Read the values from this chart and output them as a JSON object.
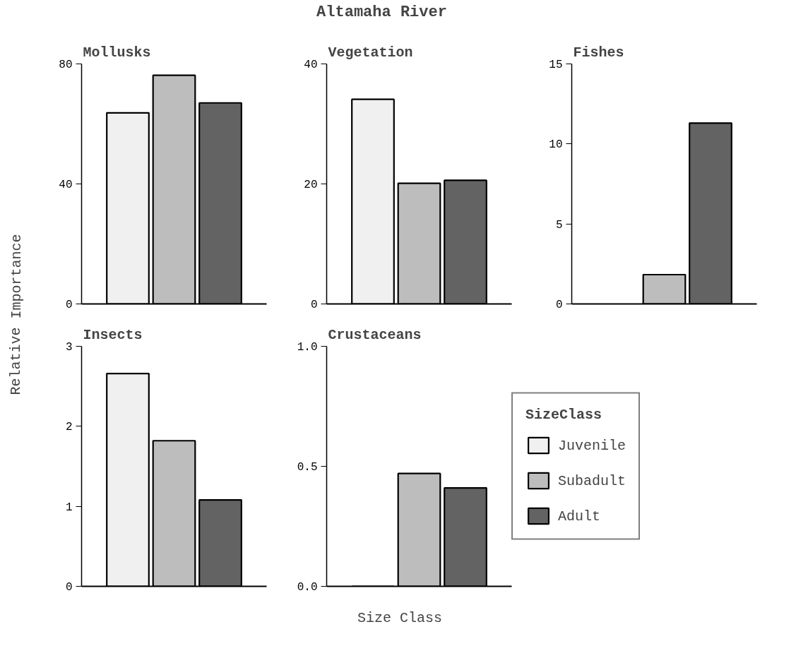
{
  "chart_data": [
    {
      "type": "bar",
      "title": "Mollusks",
      "categories": [
        null
      ],
      "ylim": [
        0,
        80
      ],
      "yticks": [
        0,
        40,
        80
      ],
      "series": [
        {
          "color": "#f0f0f0",
          "values": [
            63.7
          ]
        },
        {
          "color": "#bdbdbd",
          "values": [
            76.2
          ]
        },
        {
          "color": "#636363",
          "values": [
            67.0
          ]
        }
      ]
    },
    {
      "type": "bar",
      "title": "Vegetation",
      "categories": [
        null
      ],
      "ylim": [
        0,
        40
      ],
      "yticks": [
        0,
        20,
        40
      ],
      "series": [
        {
          "color": "#f0f0f0",
          "values": [
            34.1
          ]
        },
        {
          "color": "#bdbdbd",
          "values": [
            20.1
          ]
        },
        {
          "color": "#636363",
          "values": [
            20.6
          ]
        }
      ]
    },
    {
      "type": "bar",
      "title": "Fishes",
      "categories": [
        null
      ],
      "ylim": [
        0,
        15
      ],
      "yticks": [
        0,
        5,
        10,
        15
      ],
      "series": [
        {
          "color": "#f0f0f0",
          "values": [
            null
          ]
        },
        {
          "color": "#bdbdbd",
          "values": [
            1.83
          ]
        },
        {
          "color": "#636363",
          "values": [
            11.3
          ]
        }
      ]
    },
    {
      "type": "bar",
      "title": "Insects",
      "categories": [
        null
      ],
      "ylim": [
        0,
        3
      ],
      "yticks": [
        0,
        1,
        2,
        3
      ],
      "series": [
        {
          "color": "#f0f0f0",
          "values": [
            2.66
          ]
        },
        {
          "color": "#bdbdbd",
          "values": [
            1.82
          ]
        },
        {
          "color": "#636363",
          "values": [
            1.08
          ]
        }
      ]
    },
    {
      "type": "bar",
      "title": "Crustaceans",
      "categories": [
        null
      ],
      "ylim": [
        0,
        1
      ],
      "yticks": [
        {
          "value": 0,
          "label": "0.0"
        },
        {
          "value": 0.5,
          "label": "0.5"
        },
        {
          "value": 1,
          "label": "1.0"
        }
      ],
      "legend": "right",
      "legend_title": "SizeClass",
      "series": [
        {
          "name": "Juvenile",
          "color": "#f0f0f0",
          "values": [
            0
          ]
        },
        {
          "name": "Subadult",
          "color": "#bdbdbd",
          "values": [
            0.47
          ]
        },
        {
          "name": "Adult",
          "color": "#636363",
          "values": [
            0.41
          ]
        }
      ]
    },
    {
      "type": "other",
      "title": "Altamaha River",
      "xlabel": "Size Class",
      "ylabel": "Relative Importance"
    }
  ]
}
